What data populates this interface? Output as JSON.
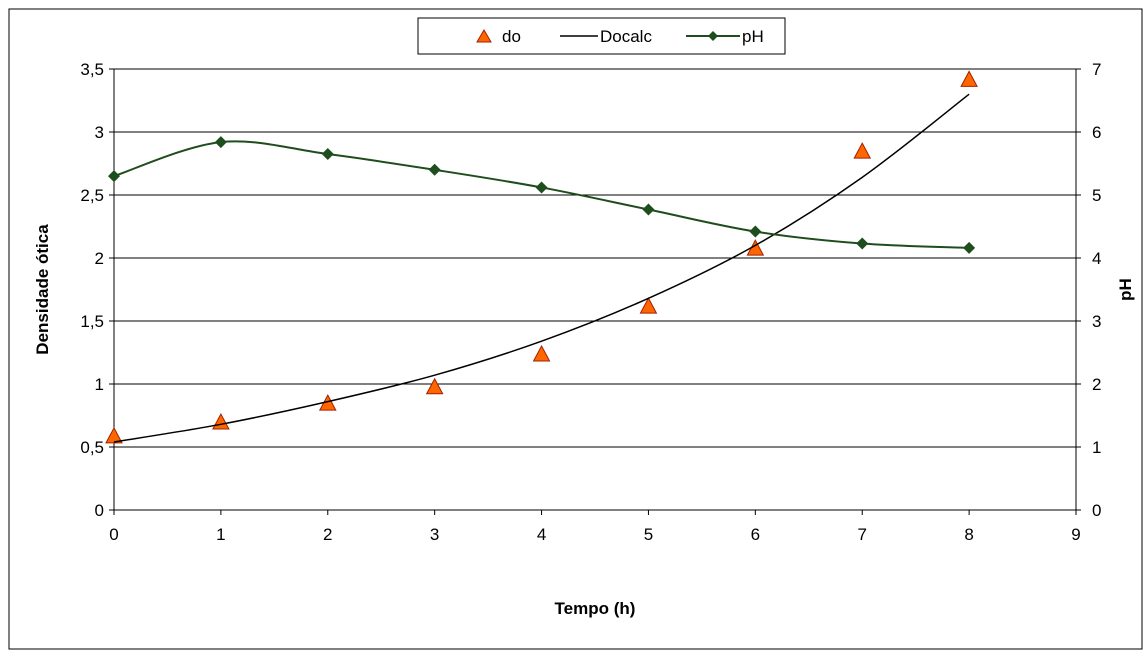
{
  "chart_data": {
    "type": "line",
    "title": "",
    "xlabel": "Tempo (h)",
    "ylabel": "Densidade ótica",
    "y2label": "pH",
    "xlim": [
      0,
      9
    ],
    "ylim": [
      0,
      3.5
    ],
    "y2lim": [
      0,
      7
    ],
    "x_ticks": [
      0,
      1,
      2,
      3,
      4,
      5,
      6,
      7,
      8,
      9
    ],
    "x_tick_labels": [
      "0",
      "1",
      "2",
      "3",
      "4",
      "5",
      "6",
      "7",
      "8",
      "9"
    ],
    "y_ticks": [
      0,
      0.5,
      1,
      1.5,
      2,
      2.5,
      3,
      3.5
    ],
    "y_tick_labels": [
      "0",
      "0,5",
      "1",
      "1,5",
      "2",
      "2,5",
      "3",
      "3,5"
    ],
    "y2_ticks": [
      0,
      1,
      2,
      3,
      4,
      5,
      6,
      7
    ],
    "y2_tick_labels": [
      "0",
      "1",
      "2",
      "3",
      "4",
      "5",
      "6",
      "7"
    ],
    "grid": true,
    "legend_position": "top-center",
    "series": [
      {
        "name": "do",
        "axis": "left",
        "style": "markers",
        "marker": "triangle",
        "color": "#FF6600",
        "x": [
          0,
          1,
          2,
          3,
          4,
          5,
          6,
          7,
          8
        ],
        "values": [
          0.58,
          0.69,
          0.84,
          0.97,
          1.23,
          1.61,
          2.07,
          2.84,
          3.41
        ]
      },
      {
        "name": "Docalc",
        "axis": "left",
        "style": "line",
        "color": "#000000",
        "x": [
          0,
          1,
          2,
          3,
          4,
          5,
          6,
          7,
          8
        ],
        "values": [
          0.54,
          0.68,
          0.86,
          1.07,
          1.34,
          1.68,
          2.1,
          2.64,
          3.3
        ]
      },
      {
        "name": "pH",
        "axis": "right",
        "style": "line-markers",
        "marker": "diamond",
        "color": "#1E4D1E",
        "x": [
          0,
          1,
          2,
          3,
          4,
          5,
          6,
          7,
          8
        ],
        "values": [
          5.3,
          5.84,
          5.65,
          5.4,
          5.12,
          4.77,
          4.42,
          4.23,
          4.16
        ]
      }
    ]
  }
}
